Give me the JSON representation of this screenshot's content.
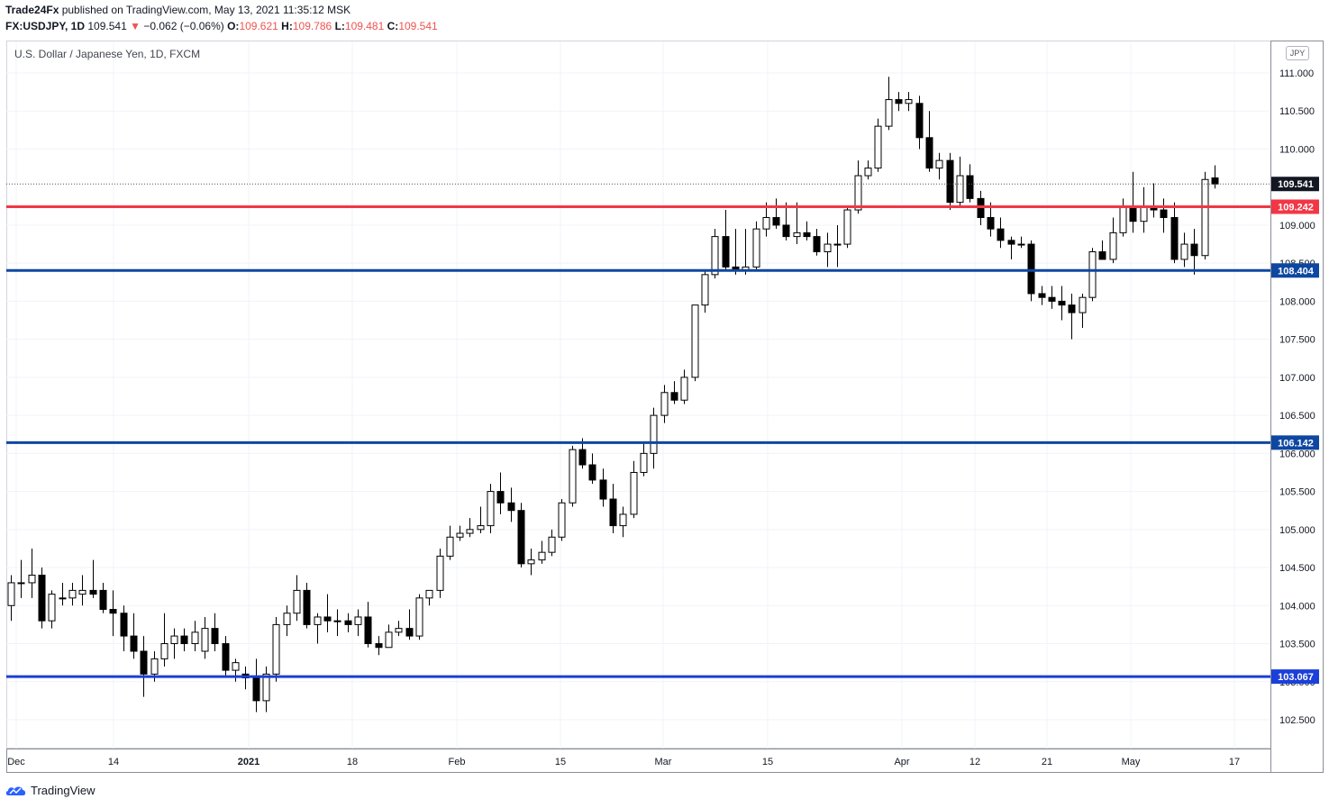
{
  "header": {
    "publisher": "Trade24Fx",
    "published_text": " published on TradingView.com, May 13, 2021 11:35:12 MSK",
    "symbol": "FX:USDJPY, 1D",
    "last": "109.541",
    "change": "−0.062 (−0.06%)",
    "o_label": "O:",
    "o": "109.621",
    "h_label": "H:",
    "h": "109.786",
    "l_label": "L:",
    "l": "109.481",
    "c_label": "C:",
    "c": "109.541"
  },
  "chart_title": "U.S. Dollar / Japanese Yen, 1D, FXCM",
  "currency_badge": "JPY",
  "footer_brand": "TradingView",
  "colors": {
    "red_line": "#f23645",
    "blue_line": "#0d47a1",
    "blue_line2": "#1b3fd8",
    "candle_up_fill": "#ffffff",
    "candle_down_fill": "#000000",
    "current_price_box": "#131722"
  },
  "chart_data": {
    "type": "candlestick",
    "title": "U.S. Dollar / Japanese Yen, 1D, FXCM",
    "ylim": [
      102.0,
      111.5
    ],
    "y_ticks": [
      "111.000",
      "110.500",
      "110.000",
      "109.000",
      "108.500",
      "108.000",
      "107.500",
      "107.000",
      "106.500",
      "106.000",
      "105.500",
      "105.000",
      "104.500",
      "104.000",
      "103.500",
      "103.000",
      "102.500"
    ],
    "x_ticks": [
      "Dec",
      "14",
      "2021",
      "18",
      "Feb",
      "15",
      "Mar",
      "15",
      "Apr",
      "12",
      "21",
      "May",
      "17"
    ],
    "horizontal_levels": [
      {
        "label": "109.242",
        "color": "#f23645"
      },
      {
        "label": "108.404",
        "color": "#0d47a1"
      },
      {
        "label": "106.142",
        "color": "#0d47a1"
      },
      {
        "label": "103.067",
        "color": "#1b3fd8"
      }
    ],
    "current_price": "109.541",
    "candles": [
      {
        "o": 104.0,
        "h": 104.4,
        "l": 103.8,
        "c": 104.3
      },
      {
        "o": 104.3,
        "h": 104.6,
        "l": 104.1,
        "c": 104.3
      },
      {
        "o": 104.3,
        "h": 104.75,
        "l": 104.1,
        "c": 104.4
      },
      {
        "o": 104.4,
        "h": 104.5,
        "l": 103.7,
        "c": 103.8
      },
      {
        "o": 103.8,
        "h": 104.2,
        "l": 103.7,
        "c": 104.15
      },
      {
        "o": 104.1,
        "h": 104.3,
        "l": 104.0,
        "c": 104.1
      },
      {
        "o": 104.1,
        "h": 104.3,
        "l": 104.0,
        "c": 104.2
      },
      {
        "o": 104.15,
        "h": 104.4,
        "l": 104.0,
        "c": 104.2
      },
      {
        "o": 104.2,
        "h": 104.6,
        "l": 104.1,
        "c": 104.15
      },
      {
        "o": 104.2,
        "h": 104.3,
        "l": 103.9,
        "c": 103.95
      },
      {
        "o": 103.95,
        "h": 104.2,
        "l": 103.6,
        "c": 103.9
      },
      {
        "o": 103.9,
        "h": 104.0,
        "l": 103.4,
        "c": 103.6
      },
      {
        "o": 103.6,
        "h": 103.9,
        "l": 103.3,
        "c": 103.4
      },
      {
        "o": 103.4,
        "h": 103.6,
        "l": 102.8,
        "c": 103.1
      },
      {
        "o": 103.1,
        "h": 103.4,
        "l": 103.0,
        "c": 103.3
      },
      {
        "o": 103.3,
        "h": 103.9,
        "l": 103.2,
        "c": 103.5
      },
      {
        "o": 103.5,
        "h": 103.7,
        "l": 103.3,
        "c": 103.6
      },
      {
        "o": 103.6,
        "h": 103.7,
        "l": 103.4,
        "c": 103.5
      },
      {
        "o": 103.5,
        "h": 103.8,
        "l": 103.4,
        "c": 103.65
      },
      {
        "o": 103.4,
        "h": 103.85,
        "l": 103.3,
        "c": 103.7
      },
      {
        "o": 103.7,
        "h": 103.9,
        "l": 103.4,
        "c": 103.5
      },
      {
        "o": 103.5,
        "h": 103.6,
        "l": 103.05,
        "c": 103.15
      },
      {
        "o": 103.15,
        "h": 103.3,
        "l": 103.0,
        "c": 103.25
      },
      {
        "o": 103.1,
        "h": 103.2,
        "l": 102.9,
        "c": 103.05
      },
      {
        "o": 103.05,
        "h": 103.3,
        "l": 102.6,
        "c": 102.75
      },
      {
        "o": 102.75,
        "h": 103.2,
        "l": 102.6,
        "c": 103.1
      },
      {
        "o": 103.1,
        "h": 103.85,
        "l": 103.0,
        "c": 103.75
      },
      {
        "o": 103.75,
        "h": 104.0,
        "l": 103.6,
        "c": 103.9
      },
      {
        "o": 103.9,
        "h": 104.4,
        "l": 103.8,
        "c": 104.2
      },
      {
        "o": 104.2,
        "h": 104.3,
        "l": 103.7,
        "c": 103.75
      },
      {
        "o": 103.75,
        "h": 103.9,
        "l": 103.5,
        "c": 103.85
      },
      {
        "o": 103.85,
        "h": 104.15,
        "l": 103.65,
        "c": 103.8
      },
      {
        "o": 103.8,
        "h": 103.95,
        "l": 103.6,
        "c": 103.8
      },
      {
        "o": 103.8,
        "h": 103.9,
        "l": 103.65,
        "c": 103.75
      },
      {
        "o": 103.75,
        "h": 103.95,
        "l": 103.6,
        "c": 103.85
      },
      {
        "o": 103.85,
        "h": 104.05,
        "l": 103.45,
        "c": 103.5
      },
      {
        "o": 103.5,
        "h": 103.6,
        "l": 103.35,
        "c": 103.45
      },
      {
        "o": 103.45,
        "h": 103.75,
        "l": 103.45,
        "c": 103.65
      },
      {
        "o": 103.65,
        "h": 103.8,
        "l": 103.6,
        "c": 103.7
      },
      {
        "o": 103.7,
        "h": 103.95,
        "l": 103.55,
        "c": 103.6
      },
      {
        "o": 103.6,
        "h": 104.15,
        "l": 103.55,
        "c": 104.1
      },
      {
        "o": 104.1,
        "h": 104.2,
        "l": 104.0,
        "c": 104.2
      },
      {
        "o": 104.2,
        "h": 104.75,
        "l": 104.1,
        "c": 104.65
      },
      {
        "o": 104.65,
        "h": 105.05,
        "l": 104.6,
        "c": 104.9
      },
      {
        "o": 104.9,
        "h": 105.05,
        "l": 104.85,
        "c": 104.95
      },
      {
        "o": 104.95,
        "h": 105.15,
        "l": 104.9,
        "c": 105.0
      },
      {
        "o": 105.0,
        "h": 105.3,
        "l": 104.95,
        "c": 105.05
      },
      {
        "o": 105.05,
        "h": 105.6,
        "l": 104.95,
        "c": 105.5
      },
      {
        "o": 105.5,
        "h": 105.75,
        "l": 105.2,
        "c": 105.35
      },
      {
        "o": 105.35,
        "h": 105.55,
        "l": 105.1,
        "c": 105.25
      },
      {
        "o": 105.25,
        "h": 105.35,
        "l": 104.5,
        "c": 104.55
      },
      {
        "o": 104.55,
        "h": 104.75,
        "l": 104.4,
        "c": 104.6
      },
      {
        "o": 104.6,
        "h": 104.85,
        "l": 104.55,
        "c": 104.7
      },
      {
        "o": 104.7,
        "h": 105.0,
        "l": 104.65,
        "c": 104.9
      },
      {
        "o": 104.9,
        "h": 105.4,
        "l": 104.85,
        "c": 105.35
      },
      {
        "o": 105.35,
        "h": 106.1,
        "l": 105.3,
        "c": 106.05
      },
      {
        "o": 106.05,
        "h": 106.2,
        "l": 105.8,
        "c": 105.85
      },
      {
        "o": 105.85,
        "h": 106.0,
        "l": 105.6,
        "c": 105.65
      },
      {
        "o": 105.65,
        "h": 105.8,
        "l": 105.3,
        "c": 105.4
      },
      {
        "o": 105.4,
        "h": 105.6,
        "l": 104.95,
        "c": 105.05
      },
      {
        "o": 105.05,
        "h": 105.3,
        "l": 104.9,
        "c": 105.2
      },
      {
        "o": 105.2,
        "h": 105.9,
        "l": 105.15,
        "c": 105.75
      },
      {
        "o": 105.75,
        "h": 106.15,
        "l": 105.7,
        "c": 106.0
      },
      {
        "o": 106.0,
        "h": 106.6,
        "l": 105.8,
        "c": 106.5
      },
      {
        "o": 106.5,
        "h": 106.9,
        "l": 106.4,
        "c": 106.8
      },
      {
        "o": 106.8,
        "h": 106.95,
        "l": 106.65,
        "c": 106.7
      },
      {
        "o": 106.7,
        "h": 107.1,
        "l": 106.65,
        "c": 107.0
      },
      {
        "o": 107.0,
        "h": 107.95,
        "l": 106.95,
        "c": 107.95
      },
      {
        "o": 107.95,
        "h": 108.4,
        "l": 107.85,
        "c": 108.35
      },
      {
        "o": 108.35,
        "h": 108.95,
        "l": 108.3,
        "c": 108.85
      },
      {
        "o": 108.85,
        "h": 109.2,
        "l": 108.4,
        "c": 108.45
      },
      {
        "o": 108.45,
        "h": 108.95,
        "l": 108.35,
        "c": 108.4
      },
      {
        "o": 108.4,
        "h": 108.95,
        "l": 108.35,
        "c": 108.45
      },
      {
        "o": 108.45,
        "h": 109.05,
        "l": 108.4,
        "c": 108.95
      },
      {
        "o": 108.95,
        "h": 109.3,
        "l": 108.85,
        "c": 109.1
      },
      {
        "o": 109.1,
        "h": 109.35,
        "l": 108.95,
        "c": 109.0
      },
      {
        "o": 109.0,
        "h": 109.3,
        "l": 108.8,
        "c": 108.85
      },
      {
        "o": 108.85,
        "h": 109.3,
        "l": 108.75,
        "c": 108.9
      },
      {
        "o": 108.9,
        "h": 109.05,
        "l": 108.8,
        "c": 108.85
      },
      {
        "o": 108.85,
        "h": 108.95,
        "l": 108.6,
        "c": 108.65
      },
      {
        "o": 108.65,
        "h": 108.9,
        "l": 108.45,
        "c": 108.75
      },
      {
        "o": 108.75,
        "h": 109.0,
        "l": 108.45,
        "c": 108.75
      },
      {
        "o": 108.75,
        "h": 109.25,
        "l": 108.7,
        "c": 109.2
      },
      {
        "o": 109.2,
        "h": 109.85,
        "l": 109.15,
        "c": 109.65
      },
      {
        "o": 109.65,
        "h": 109.85,
        "l": 109.6,
        "c": 109.75
      },
      {
        "o": 109.75,
        "h": 110.4,
        "l": 109.7,
        "c": 110.3
      },
      {
        "o": 110.3,
        "h": 110.95,
        "l": 110.25,
        "c": 110.65
      },
      {
        "o": 110.65,
        "h": 110.75,
        "l": 110.5,
        "c": 110.6
      },
      {
        "o": 110.6,
        "h": 110.75,
        "l": 110.5,
        "c": 110.65
      },
      {
        "o": 110.6,
        "h": 110.7,
        "l": 110.0,
        "c": 110.15
      },
      {
        "o": 110.15,
        "h": 110.5,
        "l": 109.7,
        "c": 109.75
      },
      {
        "o": 109.75,
        "h": 109.95,
        "l": 109.6,
        "c": 109.85
      },
      {
        "o": 109.85,
        "h": 109.95,
        "l": 109.2,
        "c": 109.3
      },
      {
        "o": 109.3,
        "h": 109.9,
        "l": 109.25,
        "c": 109.65
      },
      {
        "o": 109.65,
        "h": 109.8,
        "l": 109.3,
        "c": 109.35
      },
      {
        "o": 109.35,
        "h": 109.45,
        "l": 109.0,
        "c": 109.1
      },
      {
        "o": 109.1,
        "h": 109.3,
        "l": 108.85,
        "c": 108.95
      },
      {
        "o": 108.95,
        "h": 109.1,
        "l": 108.7,
        "c": 108.8
      },
      {
        "o": 108.8,
        "h": 108.85,
        "l": 108.55,
        "c": 108.75
      },
      {
        "o": 108.75,
        "h": 108.85,
        "l": 108.7,
        "c": 108.75
      },
      {
        "o": 108.75,
        "h": 108.8,
        "l": 108.0,
        "c": 108.1
      },
      {
        "o": 108.1,
        "h": 108.2,
        "l": 107.95,
        "c": 108.05
      },
      {
        "o": 108.05,
        "h": 108.2,
        "l": 107.9,
        "c": 108.0
      },
      {
        "o": 108.0,
        "h": 108.2,
        "l": 107.75,
        "c": 107.95
      },
      {
        "o": 107.95,
        "h": 108.1,
        "l": 107.5,
        "c": 107.85
      },
      {
        "o": 107.85,
        "h": 108.1,
        "l": 107.65,
        "c": 108.05
      },
      {
        "o": 108.05,
        "h": 108.7,
        "l": 108.0,
        "c": 108.65
      },
      {
        "o": 108.65,
        "h": 108.8,
        "l": 108.55,
        "c": 108.55
      },
      {
        "o": 108.55,
        "h": 109.1,
        "l": 108.5,
        "c": 108.9
      },
      {
        "o": 108.9,
        "h": 109.35,
        "l": 108.85,
        "c": 109.25
      },
      {
        "o": 109.25,
        "h": 109.7,
        "l": 108.9,
        "c": 109.05
      },
      {
        "o": 109.05,
        "h": 109.5,
        "l": 108.9,
        "c": 109.25
      },
      {
        "o": 109.25,
        "h": 109.55,
        "l": 109.1,
        "c": 109.2
      },
      {
        "o": 109.2,
        "h": 109.35,
        "l": 108.9,
        "c": 109.1
      },
      {
        "o": 109.1,
        "h": 109.3,
        "l": 108.5,
        "c": 108.55
      },
      {
        "o": 108.55,
        "h": 108.9,
        "l": 108.45,
        "c": 108.75
      },
      {
        "o": 108.75,
        "h": 108.95,
        "l": 108.35,
        "c": 108.6
      },
      {
        "o": 108.6,
        "h": 109.7,
        "l": 108.55,
        "c": 109.6
      },
      {
        "o": 109.621,
        "h": 109.786,
        "l": 109.481,
        "c": 109.541
      }
    ]
  }
}
